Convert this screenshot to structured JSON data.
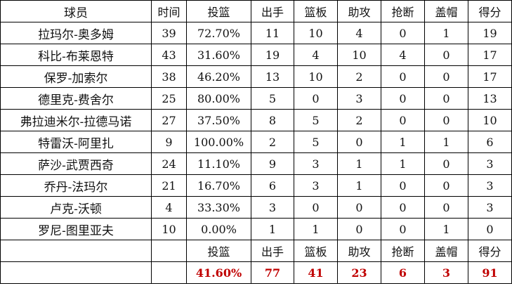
{
  "header": [
    "球员",
    "时间",
    "投篮",
    "出手",
    "篮板",
    "助攻",
    "抢断",
    "盖帽",
    "得分"
  ],
  "rows": [
    [
      "拉玛尔-奥多姆",
      "39",
      "72.70%",
      "11",
      "10",
      "4",
      "0",
      "1",
      "19"
    ],
    [
      "科比-布莱恩特",
      "43",
      "31.60%",
      "19",
      "4",
      "10",
      "4",
      "0",
      "17"
    ],
    [
      "保罗-加索尔",
      "38",
      "46.20%",
      "13",
      "10",
      "2",
      "0",
      "0",
      "17"
    ],
    [
      "德里克-费舍尔",
      "25",
      "80.00%",
      "5",
      "0",
      "3",
      "0",
      "0",
      "13"
    ],
    [
      "弗拉迪米尔-拉德马诺",
      "27",
      "37.50%",
      "8",
      "5",
      "2",
      "0",
      "0",
      "10"
    ],
    [
      "特雷沃-阿里扎",
      "9",
      "100.00%",
      "2",
      "5",
      "0",
      "1",
      "1",
      "6"
    ],
    [
      "萨沙-武贾西奇",
      "24",
      "11.10%",
      "9",
      "3",
      "1",
      "1",
      "0",
      "3"
    ],
    [
      "乔丹-法玛尔",
      "21",
      "16.70%",
      "6",
      "3",
      "1",
      "0",
      "0",
      "3"
    ],
    [
      "卢克-沃顿",
      "4",
      "33.30%",
      "3",
      "0",
      "0",
      "0",
      "0",
      "3"
    ],
    [
      "罗尼-图里亚夫",
      "10",
      "0.00%",
      "1",
      "1",
      "0",
      "0",
      "1",
      "0"
    ]
  ],
  "summary_header": [
    "投篮",
    "出手",
    "篮板",
    "助攻",
    "抢断",
    "盖帽",
    "得分"
  ],
  "totals": [
    "41.60%",
    "77",
    "41",
    "23",
    "6",
    "3",
    "91"
  ],
  "colors": {
    "totals": "#c00000"
  }
}
